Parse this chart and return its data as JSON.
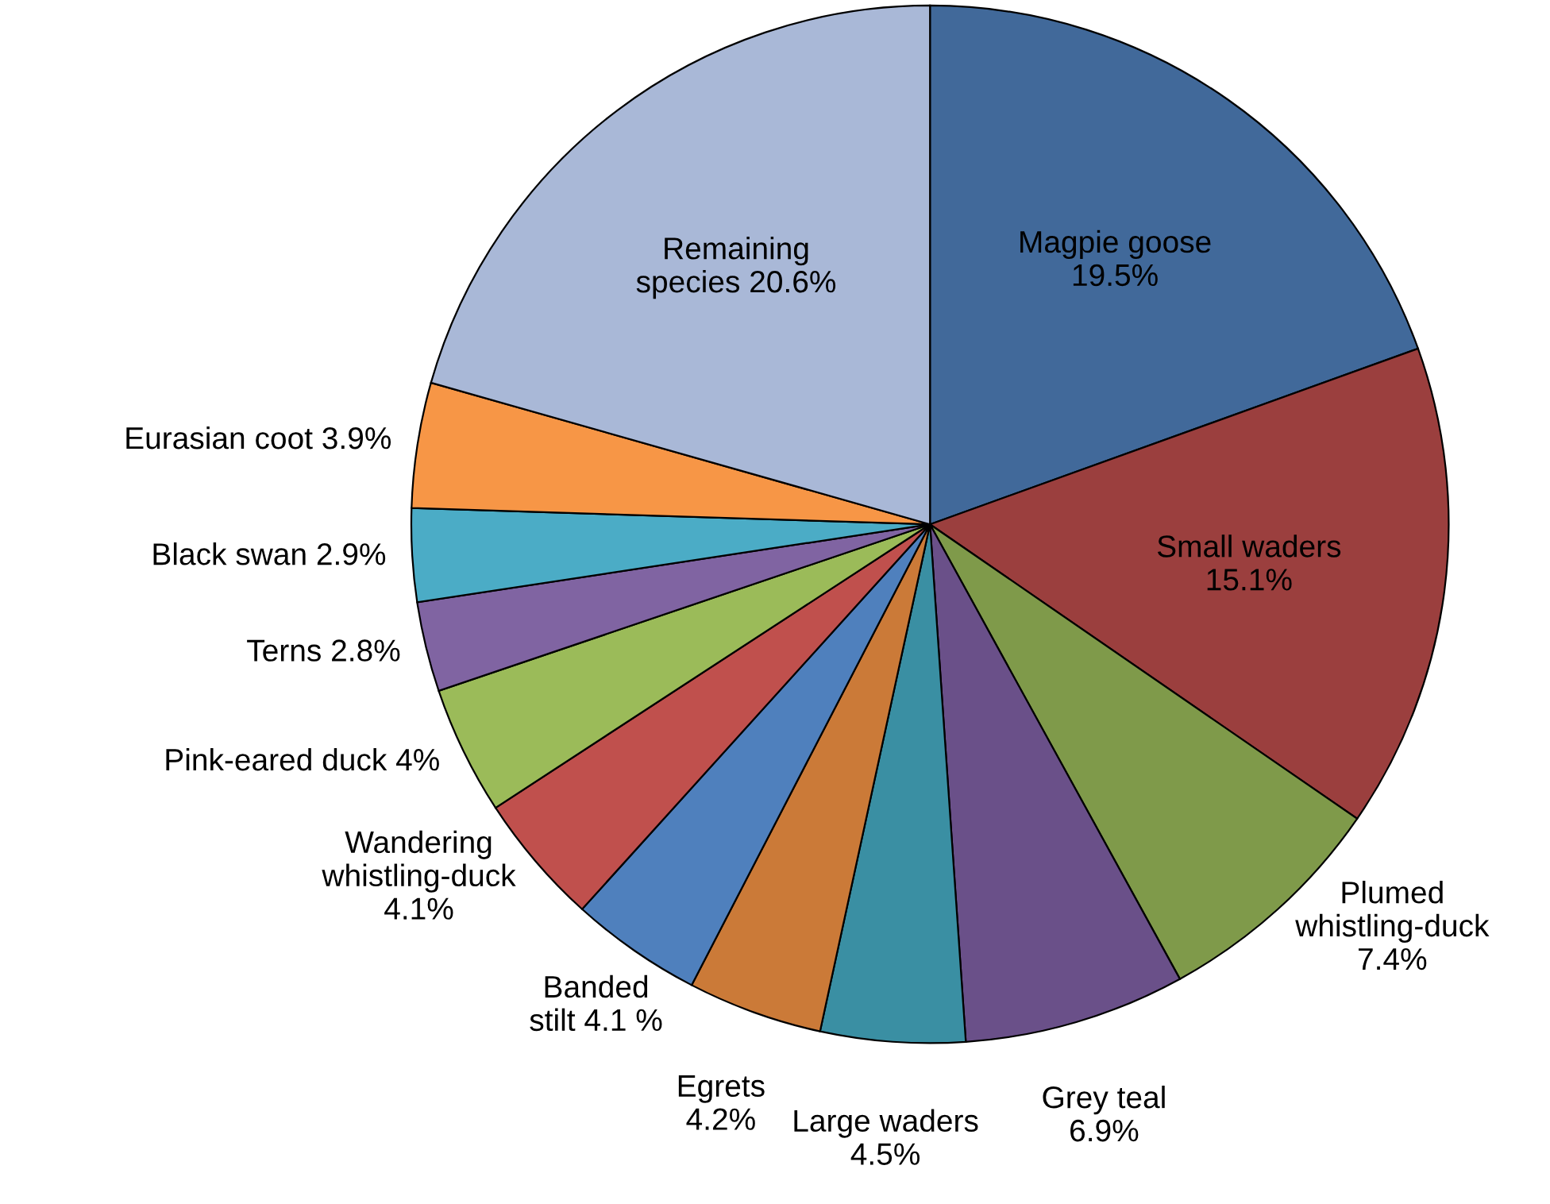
{
  "chart_data": {
    "type": "pie",
    "categories": [
      "Magpie goose\n19.5%",
      "Small waders\n15.1%",
      "Plumed\nwhistling-duck\n7.4%",
      "Grey teal\n6.9%",
      "Large waders\n4.5%",
      "Egrets\n4.2%",
      "Banded\nstilt 4.1 %",
      "Wandering\nwhistling-duck\n4.1%",
      "Pink-eared duck 4%",
      "Terns 2.8%",
      "Black swan 2.9%",
      "Eurasian coot 3.9%",
      "Remaining\nspecies 20.6%"
    ],
    "values": [
      19.5,
      15.1,
      7.4,
      6.9,
      4.5,
      4.2,
      4.1,
      4.1,
      4.0,
      2.8,
      2.9,
      3.9,
      20.6
    ],
    "colors": [
      "#41699a",
      "#9b3f3e",
      "#7f9a4a",
      "#6a5089",
      "#3a8fa3",
      "#cb7a38",
      "#4f80bd",
      "#c0504d",
      "#9bbb59",
      "#8064a2",
      "#4bacc6",
      "#f79646",
      "#a9b8d7"
    ]
  }
}
